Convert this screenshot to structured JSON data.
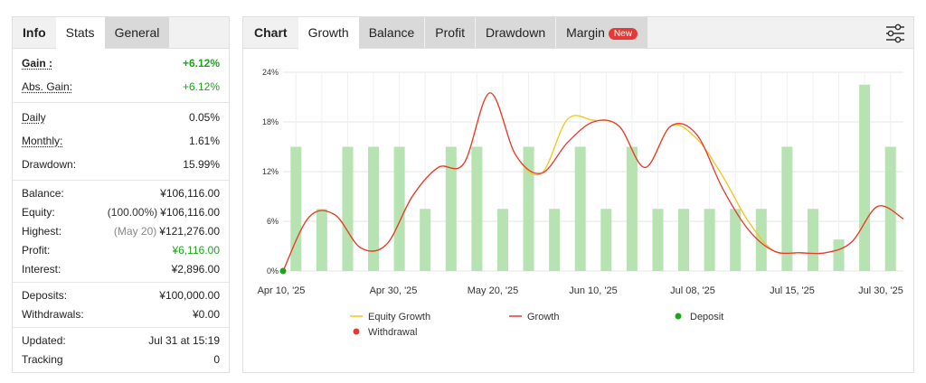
{
  "left": {
    "tabs": [
      {
        "label": "Info"
      },
      {
        "label": "Stats"
      },
      {
        "label": "General"
      }
    ],
    "groups": [
      {
        "rows": [
          {
            "label": "Gain :",
            "value": "+6.12%"
          },
          {
            "label": "Abs. Gain:",
            "value": "+6.12%"
          }
        ]
      },
      {
        "rows": [
          {
            "label": "Daily",
            "value": "0.05%"
          },
          {
            "label": "Monthly:",
            "value": "1.61%"
          },
          {
            "label": "Drawdown:",
            "value": "15.99%"
          }
        ]
      },
      {
        "rows": [
          {
            "label": "Balance:",
            "value": "¥106,116.00"
          },
          {
            "label": "Equity:",
            "note": "(100.00%)",
            "value": "¥106,116.00"
          },
          {
            "label": "Highest:",
            "note": "(May 20)",
            "value": "¥121,276.00"
          },
          {
            "label": "Profit:",
            "value": "¥6,116.00"
          },
          {
            "label": "Interest:",
            "value": "¥2,896.00"
          }
        ]
      },
      {
        "rows": [
          {
            "label": "Deposits:",
            "value": "¥100,000.00"
          },
          {
            "label": "Withdrawals:",
            "value": "¥0.00"
          }
        ]
      },
      {
        "rows": [
          {
            "label": "Updated:",
            "value": "Jul 31 at 15:19"
          },
          {
            "label": "Tracking",
            "value": "0"
          }
        ]
      }
    ]
  },
  "right": {
    "tabs": [
      {
        "label": "Chart"
      },
      {
        "label": "Growth"
      },
      {
        "label": "Balance"
      },
      {
        "label": "Profit"
      },
      {
        "label": "Drawdown"
      },
      {
        "label": "Margin"
      }
    ],
    "badge": "New",
    "settings_icon": "sliders-icon"
  },
  "colors": {
    "bar": "#b7e2b1",
    "equity": "#f5c518",
    "growth": "#e53935",
    "deposit": "#1aa51a",
    "withdrawal": "#e53935",
    "positive": "#1aa51a"
  },
  "chart_data": {
    "type": "bar+line",
    "xlabel": "",
    "ylabel": "",
    "ylim": [
      0,
      24
    ],
    "y_ticks": [
      "0%",
      "6%",
      "12%",
      "18%",
      "24%"
    ],
    "x_tick_labels": [
      "Apr 10, '25",
      "Apr 30, '25",
      "May 20, '25",
      "Jun 10, '25",
      "Jul 08, '25",
      "Jul 15, '25",
      "Jul 30, '25"
    ],
    "bars": [
      15,
      7.5,
      15,
      15,
      15,
      7.5,
      15,
      15,
      7.5,
      15,
      7.5,
      15,
      7.5,
      15,
      7.5,
      7.5,
      7.5,
      7.5,
      7.5,
      15,
      7.5,
      3.8,
      22.5,
      15
    ],
    "growth": [
      0,
      6.5,
      6.8,
      2.8,
      3.2,
      9,
      12.5,
      13,
      21.5,
      14,
      11.8,
      15.5,
      18,
      17.5,
      12.5,
      17.5,
      16.5,
      10,
      5,
      2.4,
      2.2,
      2.2,
      3.5,
      7.8,
      6.3
    ],
    "equity_growth": [
      0,
      6.5,
      6.8,
      2.8,
      3.2,
      9,
      12.5,
      13,
      21.5,
      14,
      11.8,
      18.3,
      18.2,
      17.5,
      12.5,
      17.5,
      16,
      11.5,
      6,
      2.4,
      2.2,
      2.2,
      3.5,
      7.8,
      6.3
    ],
    "deposit_point": {
      "x": "Apr 10, '25",
      "y": 0
    },
    "legend": [
      {
        "name": "Equity Growth",
        "marker": "line",
        "color": "#f5c518"
      },
      {
        "name": "Growth",
        "marker": "line",
        "color": "#e53935"
      },
      {
        "name": "Deposit",
        "marker": "dot",
        "color": "#1aa51a"
      },
      {
        "name": "Withdrawal",
        "marker": "dot",
        "color": "#e53935"
      }
    ],
    "grid": true,
    "legend_position": "bottom"
  }
}
